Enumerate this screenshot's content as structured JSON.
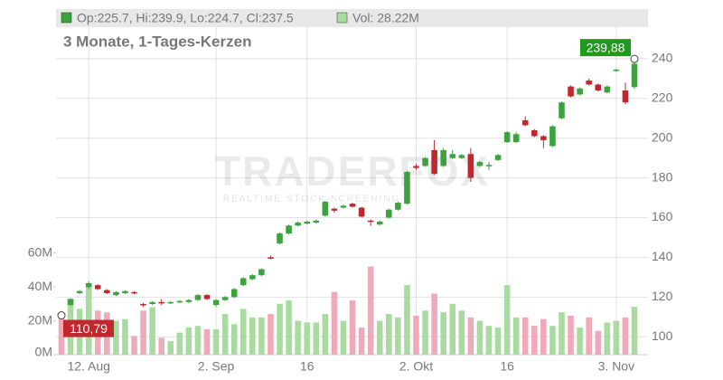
{
  "chart_data": {
    "type": "candlestick",
    "header": {
      "ohlc": "Op:225.7, Hi:239.9, Lo:224.7, Cl:237.5",
      "volume": "Vol: 28.22M"
    },
    "subtitle": "3 Monate, 1-Tages-Kerzen",
    "watermark": {
      "brand": "TRADERFOX",
      "tagline": "REALTIME STOCK SCREENING"
    },
    "categories": [
      null,
      null,
      null,
      "12. Aug",
      null,
      null,
      null,
      null,
      null,
      null,
      null,
      null,
      null,
      null,
      null,
      null,
      null,
      "2. Sep",
      null,
      null,
      null,
      null,
      null,
      null,
      null,
      null,
      null,
      "16",
      null,
      null,
      null,
      null,
      null,
      null,
      null,
      null,
      null,
      null,
      null,
      "2. Okt",
      null,
      null,
      null,
      null,
      null,
      null,
      null,
      null,
      null,
      "16",
      null,
      null,
      null,
      null,
      null,
      null,
      null,
      null,
      null,
      null,
      null,
      "3. Nov",
      null,
      null
    ],
    "open": [
      112,
      116,
      122,
      125,
      126,
      123.5,
      121,
      122,
      122.5,
      116.5,
      116.5,
      117.5,
      117,
      117.5,
      117.5,
      118.5,
      121,
      116,
      118.5,
      120,
      126,
      129,
      131,
      140,
      147,
      152,
      156,
      157,
      157.5,
      161,
      164.5,
      165,
      167,
      165,
      158.5,
      156.5,
      160,
      164,
      167,
      186,
      186,
      194,
      186,
      190,
      190,
      192,
      186,
      186,
      189,
      198,
      198,
      209,
      204,
      201,
      196,
      210,
      226,
      222,
      229,
      227,
      223,
      234,
      224,
      225.7
    ],
    "high": [
      113,
      119.5,
      123.5,
      128,
      126.5,
      124,
      123,
      123.5,
      123,
      117,
      118,
      119,
      118,
      118.5,
      119,
      121.5,
      121.5,
      119,
      120.5,
      124.5,
      130,
      131.5,
      134.5,
      141,
      152.5,
      156.5,
      158,
      158.5,
      159,
      168.5,
      165,
      166.5,
      167.5,
      165.5,
      159,
      158.5,
      164.5,
      168,
      183.5,
      187,
      190.5,
      199,
      195,
      194,
      192,
      195,
      188.5,
      188,
      192,
      203.5,
      203,
      211,
      204.5,
      201.5,
      206.5,
      218.5,
      226.5,
      225.5,
      230,
      227.5,
      226.5,
      235,
      228,
      239.88
    ],
    "low": [
      110.79,
      115.5,
      121.5,
      124,
      123.5,
      121.5,
      120.5,
      121.5,
      121.5,
      115,
      116,
      116,
      116.5,
      117,
      117,
      118,
      118.5,
      115,
      118,
      119.5,
      125.5,
      128.5,
      130.5,
      139,
      146.5,
      151.5,
      155.5,
      156.5,
      157,
      160.5,
      162.5,
      164.5,
      165,
      160,
      156,
      156,
      159.5,
      163.5,
      166.5,
      184,
      185.5,
      181.5,
      185.5,
      189.5,
      189.5,
      178,
      185.5,
      184,
      188.5,
      197.5,
      197.5,
      206,
      200.5,
      195,
      195.5,
      209.5,
      220.5,
      221.5,
      226.5,
      223.5,
      222.5,
      233.5,
      217,
      224.7
    ],
    "close": [
      110.8,
      119,
      123,
      127,
      124,
      122,
      122.5,
      123,
      121.8,
      116,
      117.5,
      117,
      117.5,
      118,
      118.5,
      121,
      119,
      118.5,
      120,
      124,
      129.5,
      131,
      134,
      139.5,
      152,
      156,
      157.5,
      158,
      158.5,
      168,
      163.5,
      166,
      165.5,
      160.5,
      158,
      158,
      164,
      167.5,
      183,
      185,
      190,
      182,
      194,
      192,
      191.5,
      180,
      188,
      186.5,
      191.5,
      203,
      202,
      206.5,
      201,
      199,
      206,
      218,
      221,
      225,
      227,
      224,
      226,
      234.5,
      218,
      237.5
    ],
    "volume": [
      25,
      33,
      27,
      40,
      26,
      25,
      20,
      21,
      11,
      26,
      28,
      10,
      8,
      13,
      16,
      17,
      15,
      15,
      24,
      18,
      27,
      22,
      22,
      24,
      30,
      32,
      20,
      19,
      19,
      24,
      37,
      20,
      32,
      16,
      52,
      20,
      24,
      22,
      41,
      23,
      26,
      36,
      25,
      30,
      26,
      22,
      20,
      17,
      16,
      41,
      22,
      22,
      17,
      21,
      17,
      25,
      23,
      16,
      22,
      14,
      19,
      20,
      22,
      28.22
    ],
    "up_color": "#3ba33b",
    "down_color": "#c1272d",
    "up_volume_color": "#a9dba0",
    "down_volume_color": "#f0a9b9",
    "ylim": [
      91,
      265
    ],
    "yticks": [
      100,
      120,
      140,
      160,
      180,
      200,
      220,
      240
    ],
    "y2lim": [
      0,
      204
    ],
    "y2ticks": [
      {
        "value": 0,
        "label": "0M"
      },
      {
        "value": 20,
        "label": "20M"
      },
      {
        "value": 40,
        "label": "40M"
      },
      {
        "value": 60,
        "label": "60M"
      }
    ],
    "annotations": [
      {
        "index": 0,
        "value": 110.79,
        "label": "110,79",
        "color": "#c1272d"
      },
      {
        "index": 63,
        "value": 239.88,
        "label": "239,88",
        "color": "#1f9a1f"
      }
    ],
    "grid": true
  }
}
